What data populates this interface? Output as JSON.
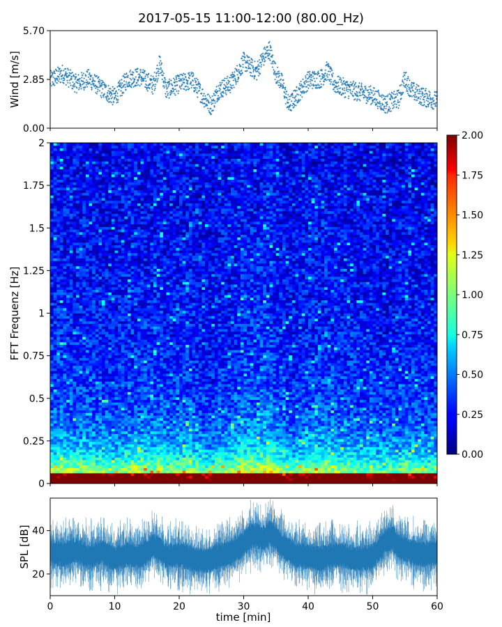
{
  "title": "2017-05-15 11:00-12:00 (80.00_Hz)",
  "chart_data": [
    {
      "type": "scatter",
      "panel": "wind",
      "ylabel": "Wind [m/s]",
      "xlabel": "",
      "xlim": [
        0,
        60
      ],
      "ylim": [
        0,
        5.7
      ],
      "yticks": [
        "0.00",
        "2.85",
        "5.70"
      ],
      "color": "#1f77b4",
      "series": [
        {
          "x": [
            0,
            2,
            4,
            6,
            8,
            10,
            12,
            14,
            16,
            17,
            18,
            20,
            22,
            24,
            25,
            26,
            28,
            29,
            30,
            31,
            32,
            33,
            34,
            35,
            36,
            37,
            38,
            40,
            42,
            43,
            44,
            46,
            48,
            50,
            52,
            54,
            55,
            56,
            58,
            60
          ],
          "y": [
            2.8,
            3.2,
            2.6,
            2.9,
            2.3,
            1.8,
            2.9,
            3.0,
            2.5,
            3.8,
            2.2,
            2.6,
            2.8,
            1.7,
            1.3,
            2.2,
            2.6,
            3.2,
            3.9,
            3.6,
            3.3,
            4.1,
            4.6,
            3.2,
            2.6,
            1.3,
            1.8,
            2.8,
            2.9,
            3.4,
            2.6,
            2.3,
            2.1,
            1.9,
            1.4,
            1.7,
            2.9,
            2.2,
            1.8,
            1.6
          ]
        }
      ]
    },
    {
      "type": "heatmap",
      "panel": "spectrogram",
      "ylabel": "FFT Frequenz [Hz]",
      "xlabel": "",
      "xlim": [
        0,
        60
      ],
      "ylim": [
        0,
        2
      ],
      "yticks": [
        "0",
        "0.25",
        "0.5",
        "0.75",
        "1",
        "1.25",
        "1.5",
        "1.75",
        "2"
      ],
      "colormap": "jet",
      "colorbar_range": [
        0,
        2
      ],
      "colorbar_ticks": [
        "0.00",
        "0.25",
        "0.50",
        "0.75",
        "1.00",
        "1.25",
        "1.50",
        "1.75",
        "2.00"
      ]
    },
    {
      "type": "area",
      "panel": "spl",
      "ylabel": "SPL [dB]",
      "xlabel": "time [min]",
      "xlim": [
        0,
        60
      ],
      "ylim": [
        10,
        55
      ],
      "yticks": [
        "20",
        "40"
      ],
      "xticks": [
        "0",
        "10",
        "20",
        "30",
        "40",
        "50",
        "60"
      ],
      "color": "#1f77b4",
      "series": [
        {
          "x": [
            0,
            2,
            4,
            6,
            8,
            10,
            12,
            14,
            16,
            17,
            18,
            20,
            22,
            24,
            26,
            28,
            30,
            31,
            32,
            33,
            34,
            35,
            36,
            38,
            40,
            42,
            44,
            46,
            48,
            50,
            52,
            53,
            54,
            56,
            58,
            60
          ],
          "y": [
            30,
            29,
            31,
            28,
            30,
            27,
            29,
            28,
            33,
            31,
            28,
            29,
            27,
            26,
            28,
            30,
            34,
            37,
            38,
            36,
            39,
            37,
            33,
            29,
            28,
            27,
            29,
            28,
            27,
            28,
            35,
            37,
            33,
            30,
            29,
            30
          ]
        }
      ]
    }
  ]
}
